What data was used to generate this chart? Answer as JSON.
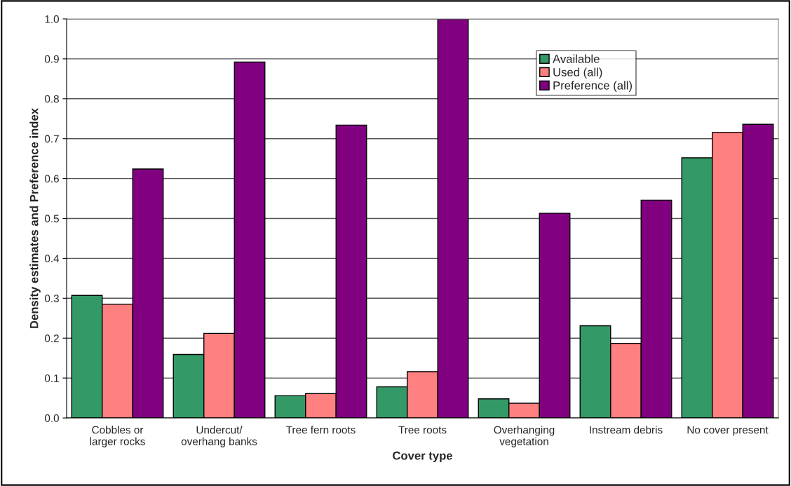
{
  "chart_data": {
    "type": "bar",
    "xlabel": "Cover type",
    "ylabel": "Density estimates and Preference index",
    "categories": [
      "Cobbles or\nlarger rocks",
      "Undercut/\noverhang banks",
      "Tree fern roots",
      "Tree roots",
      "Overhanging\nvegetation",
      "Instream debris",
      "No cover present"
    ],
    "series": [
      {
        "name": "Available",
        "color": "#339966",
        "values": [
          0.307,
          0.159,
          0.056,
          0.078,
          0.048,
          0.231,
          0.652
        ]
      },
      {
        "name": "Used (all)",
        "color": "#ff8080",
        "values": [
          0.285,
          0.212,
          0.061,
          0.116,
          0.037,
          0.187,
          0.716
        ]
      },
      {
        "name": "Preference (all)",
        "color": "#800080",
        "values": [
          0.624,
          0.892,
          0.734,
          1.0,
          0.513,
          0.546,
          0.736
        ]
      }
    ],
    "ylim": [
      0,
      1.0
    ],
    "yticks": [
      {
        "value": 0,
        "label": "0.0"
      },
      {
        "value": 0.1,
        "label": "0.1"
      },
      {
        "value": 0.2,
        "label": "0.2"
      },
      {
        "value": 0.3,
        "label": "0.3"
      },
      {
        "value": 0.4,
        "label": "0.4"
      },
      {
        "value": 0.5,
        "label": "0.5"
      },
      {
        "value": 0.6,
        "label": "0.6"
      },
      {
        "value": 0.7,
        "label": "0.7"
      },
      {
        "value": 0.8,
        "label": "0.8"
      },
      {
        "value": 0.9,
        "label": "0.9"
      },
      {
        "value": 1.0,
        "label": "1.0"
      }
    ],
    "grid": "y",
    "legend": "top right"
  }
}
